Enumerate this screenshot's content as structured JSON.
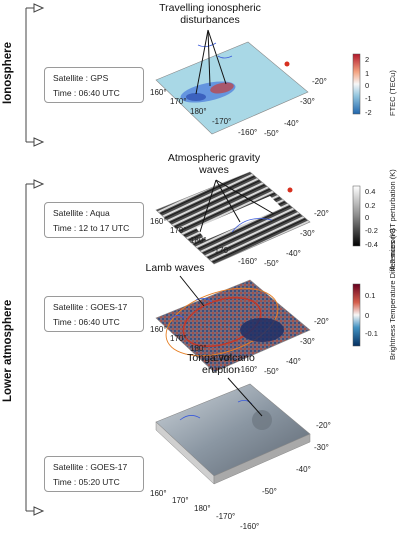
{
  "groups": {
    "ionosphere": "Ionosphere",
    "lower_atmosphere": "Lower atmosphere"
  },
  "panels": [
    {
      "satellite": "Satellite : GPS",
      "time": "Time : 06:40 UTC",
      "annotation": [
        "Travelling ionospheric",
        "disturbances"
      ],
      "colorbar": {
        "label": "FTEC (TECu)",
        "ticks": [
          "2",
          "1",
          "0",
          "-1",
          "-2"
        ],
        "colors": [
          "#b2182b",
          "#f4a582",
          "#f7f7f7",
          "#92c5de",
          "#2166ac"
        ]
      }
    },
    {
      "satellite": "Satellite : Aqua",
      "time": "Time : 12 to 17 UTC",
      "annotation": [
        "Atmospheric gravity",
        "waves"
      ],
      "colorbar": {
        "label": "4.3 micron BT perturbation (K)",
        "ticks": [
          "0.4",
          "0.2",
          "0",
          "-0.2",
          "-0.4"
        ],
        "colors": [
          "#ffffff",
          "#bdbdbd",
          "#808080",
          "#404040",
          "#000000"
        ]
      }
    },
    {
      "satellite": "Satellite : GOES-17",
      "time": "Time : 06:40 UTC",
      "annotation": [
        "Lamb waves"
      ],
      "colorbar": {
        "label": "Brightness Temperature Differences (K)",
        "ticks": [
          "0.1",
          "0",
          "-0.1"
        ],
        "colors": [
          "#67001f",
          "#d6604d",
          "#f7f7f7",
          "#4393c3",
          "#053061"
        ]
      }
    },
    {
      "satellite": "Satellite : GOES-17",
      "time": "Time : 05:20 UTC",
      "annotation": [
        "Tonga volcano",
        "eruption"
      ]
    }
  ],
  "axis_ticks": {
    "longitude": [
      "160°",
      "170°",
      "180°",
      "-170°",
      "-160°"
    ],
    "latitude": [
      "-20°",
      "-30°",
      "-40°",
      "-50°"
    ]
  },
  "colors": {
    "ionosphere_background": "#a9d8e6",
    "tid_red": "#d7301f",
    "tid_blue": "#2b5fd9",
    "coastline": "#3b5bdb"
  }
}
